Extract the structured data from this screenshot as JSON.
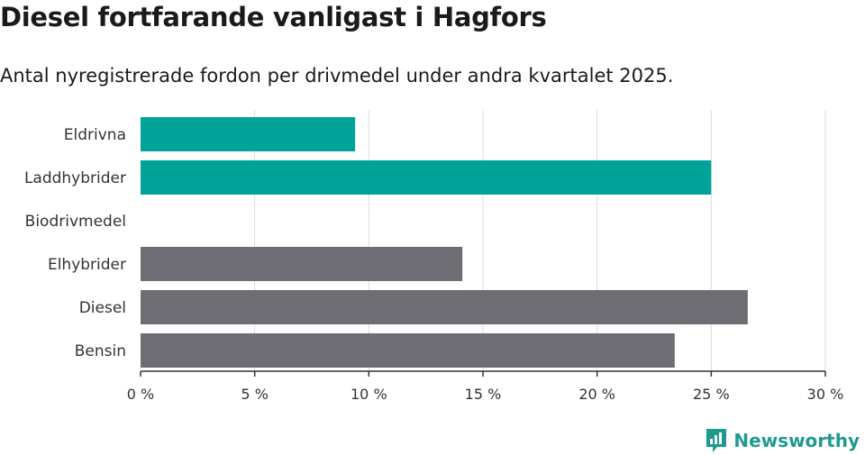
{
  "header": {
    "title": "Diesel fortfarande vanligast i Hagfors",
    "subtitle": "Antal nyregistrerade fordon per drivmedel under andra kvartalet 2025."
  },
  "brand": {
    "name": "Newsworthy",
    "icon": "newsworthy-logo-icon",
    "color": "#1f9a8f"
  },
  "colors": {
    "green": "#00a398",
    "gray": "#6e6d73",
    "grid": "#dcdcdc",
    "axis": "#333333"
  },
  "chart_data": {
    "type": "bar",
    "orientation": "horizontal",
    "categories": [
      "Eldrivna",
      "Laddhybrider",
      "Biodrivmedel",
      "Elhybrider",
      "Diesel",
      "Bensin"
    ],
    "values": [
      9.4,
      25.0,
      0,
      14.1,
      26.6,
      23.4
    ],
    "bar_colors": [
      "#00a398",
      "#00a398",
      "#00a398",
      "#6e6d73",
      "#6e6d73",
      "#6e6d73"
    ],
    "xlim": [
      0,
      30
    ],
    "xticks": [
      0,
      5,
      10,
      15,
      20,
      25,
      30
    ],
    "tick_labels": [
      "0 %",
      "5 %",
      "10 %",
      "15 %",
      "20 %",
      "25 %",
      "30 %"
    ],
    "grid": true
  }
}
